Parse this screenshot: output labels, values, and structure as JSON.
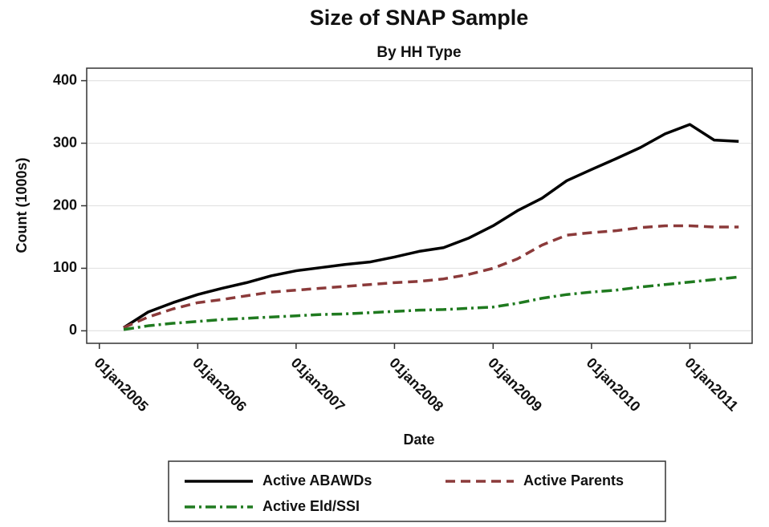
{
  "chart_data": {
    "type": "line",
    "title": "Size of SNAP Sample",
    "subtitle": "By HH Type",
    "x_label": "Date",
    "y_label": "Count (1000s)",
    "x": [
      "2005-04-01",
      "2005-07-01",
      "2005-10-01",
      "2006-01-01",
      "2006-04-01",
      "2006-07-01",
      "2006-10-01",
      "2007-01-01",
      "2007-04-01",
      "2007-07-01",
      "2007-10-01",
      "2008-01-01",
      "2008-04-01",
      "2008-07-01",
      "2008-10-01",
      "2009-01-01",
      "2009-04-01",
      "2009-07-01",
      "2009-10-01",
      "2010-01-01",
      "2010-04-01",
      "2010-07-01",
      "2010-10-01",
      "2011-01-01",
      "2011-04-01",
      "2011-07-01"
    ],
    "series": [
      {
        "name": "Active ABAWDs",
        "color": "#000000",
        "dash": "solid",
        "values": [
          5,
          30,
          45,
          58,
          68,
          77,
          88,
          96,
          101,
          106,
          110,
          118,
          127,
          133,
          148,
          168,
          192,
          212,
          240,
          258,
          275,
          293,
          315,
          330,
          305,
          303
        ]
      },
      {
        "name": "Active Parents",
        "color": "#8b3a3a",
        "dash": "dash",
        "values": [
          5,
          22,
          35,
          45,
          50,
          56,
          62,
          65,
          68,
          71,
          74,
          77,
          79,
          83,
          90,
          100,
          115,
          137,
          153,
          157,
          160,
          165,
          168,
          168,
          166,
          166
        ]
      },
      {
        "name": "Active Eld/SSI",
        "color": "#1f7a1f",
        "dash": "dashdot",
        "values": [
          2,
          8,
          12,
          15,
          18,
          20,
          22,
          24,
          26,
          27,
          29,
          31,
          33,
          34,
          36,
          38,
          44,
          52,
          58,
          62,
          65,
          70,
          74,
          78,
          82,
          86
        ]
      }
    ],
    "xlim": [
      "2004-11-15",
      "2011-08-20"
    ],
    "xticks": [
      {
        "value": "2005-01-01",
        "label": "01jan2005"
      },
      {
        "value": "2006-01-01",
        "label": "01jan2006"
      },
      {
        "value": "2007-01-01",
        "label": "01jan2007"
      },
      {
        "value": "2008-01-01",
        "label": "01jan2008"
      },
      {
        "value": "2009-01-01",
        "label": "01jan2009"
      },
      {
        "value": "2010-01-01",
        "label": "01jan2010"
      },
      {
        "value": "2011-01-01",
        "label": "01jan2011"
      }
    ],
    "ylim": [
      -20,
      420
    ],
    "yticks": [
      0,
      100,
      200,
      300,
      400
    ],
    "grid": true,
    "legend": "bottom"
  }
}
